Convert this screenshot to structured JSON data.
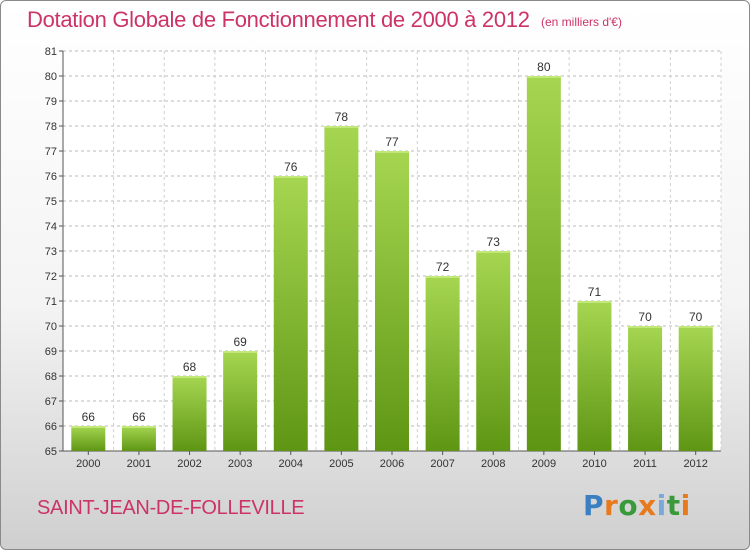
{
  "chart_data": {
    "type": "bar",
    "title": "Dotation Globale de Fonctionnement de 2000 à 2012",
    "subtitle": "(en milliers d'€)",
    "categories": [
      "2000",
      "2001",
      "2002",
      "2003",
      "2004",
      "2005",
      "2006",
      "2007",
      "2008",
      "2009",
      "2010",
      "2011",
      "2012"
    ],
    "values": [
      66,
      66,
      68,
      69,
      76,
      78,
      77,
      72,
      73,
      80,
      71,
      70,
      70
    ],
    "ylim": [
      65,
      81
    ],
    "yticks": [
      65,
      66,
      67,
      68,
      69,
      70,
      71,
      72,
      73,
      74,
      75,
      76,
      77,
      78,
      79,
      80,
      81
    ],
    "grid": true,
    "bar_color": "#7ab82e"
  },
  "footer": {
    "commune": "SAINT-JEAN-DE-FOLLEVILLE",
    "logo_text": "Proxiti",
    "logo_colors": [
      "#3a7fc1",
      "#e87a1e",
      "#3a9a3a",
      "#e87a1e",
      "#7aa8d8",
      "#3a9a3a",
      "#e87a1e"
    ]
  }
}
